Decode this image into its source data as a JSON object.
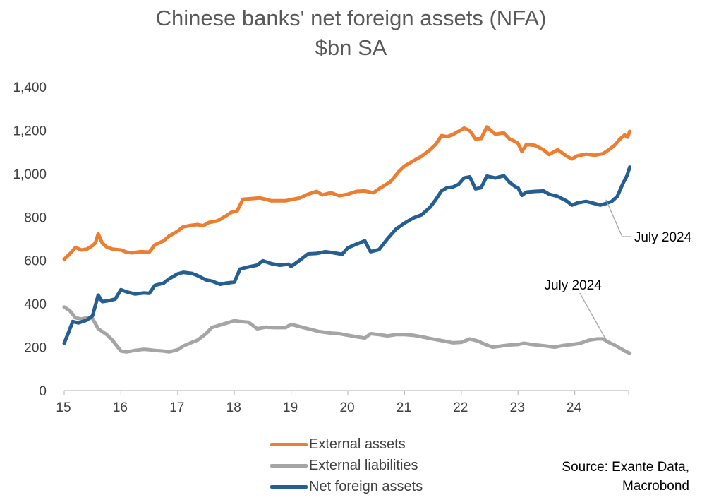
{
  "title": "Chinese banks' net foreign assets (NFA)",
  "subtitle": "$bn SA",
  "source_line1": "Source: Exante Data,",
  "source_line2": "Macrobond",
  "chart_data": {
    "type": "line",
    "title": "Chinese banks' net foreign assets (NFA)",
    "subtitle": "$bn SA",
    "x_ticks": [
      "15",
      "16",
      "17",
      "18",
      "19",
      "20",
      "21",
      "22",
      "23",
      "24"
    ],
    "y_ticks": [
      "0",
      "200",
      "400",
      "600",
      "800",
      "1,000",
      "1,200",
      "1,400"
    ],
    "xlim": [
      2015,
      2024.95
    ],
    "ylim": [
      0,
      1400
    ],
    "grid": false,
    "legend_position": "bottom",
    "series": [
      {
        "name": "External assets",
        "color": "#ED7D31",
        "points": [
          [
            2015.0,
            605
          ],
          [
            2015.1,
            630
          ],
          [
            2015.2,
            660
          ],
          [
            2015.3,
            648
          ],
          [
            2015.4,
            652
          ],
          [
            2015.5,
            668
          ],
          [
            2015.55,
            680
          ],
          [
            2015.6,
            722
          ],
          [
            2015.67,
            680
          ],
          [
            2015.75,
            662
          ],
          [
            2015.85,
            652
          ],
          [
            2016.0,
            648
          ],
          [
            2016.1,
            638
          ],
          [
            2016.2,
            635
          ],
          [
            2016.35,
            640
          ],
          [
            2016.5,
            638
          ],
          [
            2016.6,
            672
          ],
          [
            2016.75,
            690
          ],
          [
            2016.85,
            712
          ],
          [
            2017.0,
            735
          ],
          [
            2017.1,
            755
          ],
          [
            2017.25,
            762
          ],
          [
            2017.35,
            765
          ],
          [
            2017.45,
            760
          ],
          [
            2017.55,
            775
          ],
          [
            2017.7,
            782
          ],
          [
            2017.85,
            805
          ],
          [
            2017.95,
            822
          ],
          [
            2018.05,
            828
          ],
          [
            2018.15,
            882
          ],
          [
            2018.3,
            885
          ],
          [
            2018.45,
            888
          ],
          [
            2018.55,
            882
          ],
          [
            2018.65,
            875
          ],
          [
            2018.75,
            875
          ],
          [
            2018.9,
            875
          ],
          [
            2019.0,
            880
          ],
          [
            2019.15,
            888
          ],
          [
            2019.3,
            905
          ],
          [
            2019.45,
            918
          ],
          [
            2019.55,
            902
          ],
          [
            2019.7,
            912
          ],
          [
            2019.85,
            898
          ],
          [
            2020.0,
            905
          ],
          [
            2020.15,
            918
          ],
          [
            2020.3,
            920
          ],
          [
            2020.45,
            912
          ],
          [
            2020.55,
            930
          ],
          [
            2020.75,
            962
          ],
          [
            2020.9,
            1010
          ],
          [
            2021.0,
            1035
          ],
          [
            2021.15,
            1058
          ],
          [
            2021.3,
            1080
          ],
          [
            2021.45,
            1110
          ],
          [
            2021.55,
            1135
          ],
          [
            2021.65,
            1175
          ],
          [
            2021.75,
            1170
          ],
          [
            2021.85,
            1180
          ],
          [
            2021.95,
            1195
          ],
          [
            2022.05,
            1210
          ],
          [
            2022.15,
            1198
          ],
          [
            2022.25,
            1160
          ],
          [
            2022.35,
            1162
          ],
          [
            2022.45,
            1215
          ],
          [
            2022.6,
            1182
          ],
          [
            2022.75,
            1188
          ],
          [
            2022.85,
            1160
          ],
          [
            2022.95,
            1148
          ],
          [
            2023.0,
            1140
          ],
          [
            2023.07,
            1102
          ],
          [
            2023.15,
            1135
          ],
          [
            2023.3,
            1130
          ],
          [
            2023.45,
            1110
          ],
          [
            2023.55,
            1088
          ],
          [
            2023.7,
            1110
          ],
          [
            2023.85,
            1082
          ],
          [
            2023.95,
            1068
          ],
          [
            2024.05,
            1082
          ],
          [
            2024.2,
            1090
          ],
          [
            2024.35,
            1085
          ],
          [
            2024.5,
            1092
          ],
          [
            2024.6,
            1110
          ],
          [
            2024.7,
            1130
          ],
          [
            2024.8,
            1160
          ],
          [
            2024.88,
            1178
          ],
          [
            2024.93,
            1168
          ],
          [
            2024.97,
            1195
          ]
        ]
      },
      {
        "name": "External liabilities",
        "color": "#A5A5A5",
        "points": [
          [
            2015.0,
            385
          ],
          [
            2015.1,
            368
          ],
          [
            2015.2,
            335
          ],
          [
            2015.3,
            330
          ],
          [
            2015.4,
            335
          ],
          [
            2015.5,
            332
          ],
          [
            2015.6,
            285
          ],
          [
            2015.75,
            258
          ],
          [
            2015.85,
            232
          ],
          [
            2016.0,
            182
          ],
          [
            2016.1,
            178
          ],
          [
            2016.25,
            185
          ],
          [
            2016.4,
            190
          ],
          [
            2016.5,
            188
          ],
          [
            2016.6,
            185
          ],
          [
            2016.75,
            182
          ],
          [
            2016.85,
            178
          ],
          [
            2017.0,
            188
          ],
          [
            2017.1,
            205
          ],
          [
            2017.25,
            222
          ],
          [
            2017.35,
            232
          ],
          [
            2017.5,
            262
          ],
          [
            2017.6,
            290
          ],
          [
            2017.75,
            302
          ],
          [
            2017.85,
            310
          ],
          [
            2018.0,
            322
          ],
          [
            2018.1,
            318
          ],
          [
            2018.25,
            315
          ],
          [
            2018.4,
            285
          ],
          [
            2018.55,
            292
          ],
          [
            2018.7,
            290
          ],
          [
            2018.9,
            290
          ],
          [
            2019.0,
            305
          ],
          [
            2019.15,
            295
          ],
          [
            2019.3,
            285
          ],
          [
            2019.5,
            272
          ],
          [
            2019.7,
            265
          ],
          [
            2019.85,
            262
          ],
          [
            2020.0,
            255
          ],
          [
            2020.15,
            248
          ],
          [
            2020.3,
            242
          ],
          [
            2020.4,
            262
          ],
          [
            2020.55,
            258
          ],
          [
            2020.7,
            252
          ],
          [
            2020.85,
            258
          ],
          [
            2021.0,
            258
          ],
          [
            2021.15,
            255
          ],
          [
            2021.3,
            248
          ],
          [
            2021.45,
            240
          ],
          [
            2021.55,
            235
          ],
          [
            2021.7,
            228
          ],
          [
            2021.85,
            220
          ],
          [
            2022.0,
            222
          ],
          [
            2022.15,
            238
          ],
          [
            2022.3,
            228
          ],
          [
            2022.4,
            215
          ],
          [
            2022.55,
            200
          ],
          [
            2022.7,
            205
          ],
          [
            2022.85,
            210
          ],
          [
            2023.0,
            212
          ],
          [
            2023.1,
            218
          ],
          [
            2023.25,
            212
          ],
          [
            2023.4,
            208
          ],
          [
            2023.5,
            205
          ],
          [
            2023.65,
            200
          ],
          [
            2023.8,
            208
          ],
          [
            2023.95,
            212
          ],
          [
            2024.1,
            218
          ],
          [
            2024.25,
            232
          ],
          [
            2024.4,
            238
          ],
          [
            2024.5,
            238
          ],
          [
            2024.6,
            222
          ],
          [
            2024.7,
            210
          ],
          [
            2024.82,
            192
          ],
          [
            2024.9,
            180
          ],
          [
            2024.97,
            172
          ]
        ]
      },
      {
        "name": "Net foreign assets",
        "color": "#255E91",
        "points": [
          [
            2015.0,
            218
          ],
          [
            2015.08,
            270
          ],
          [
            2015.15,
            318
          ],
          [
            2015.25,
            312
          ],
          [
            2015.4,
            325
          ],
          [
            2015.5,
            345
          ],
          [
            2015.6,
            440
          ],
          [
            2015.67,
            410
          ],
          [
            2015.8,
            415
          ],
          [
            2015.9,
            422
          ],
          [
            2016.0,
            465
          ],
          [
            2016.1,
            455
          ],
          [
            2016.25,
            445
          ],
          [
            2016.4,
            450
          ],
          [
            2016.5,
            448
          ],
          [
            2016.6,
            485
          ],
          [
            2016.75,
            495
          ],
          [
            2016.85,
            515
          ],
          [
            2017.0,
            538
          ],
          [
            2017.1,
            545
          ],
          [
            2017.25,
            540
          ],
          [
            2017.35,
            530
          ],
          [
            2017.5,
            510
          ],
          [
            2017.6,
            505
          ],
          [
            2017.75,
            490
          ],
          [
            2017.85,
            495
          ],
          [
            2018.0,
            500
          ],
          [
            2018.1,
            560
          ],
          [
            2018.25,
            570
          ],
          [
            2018.4,
            578
          ],
          [
            2018.5,
            598
          ],
          [
            2018.65,
            585
          ],
          [
            2018.8,
            578
          ],
          [
            2018.95,
            582
          ],
          [
            2019.0,
            572
          ],
          [
            2019.15,
            600
          ],
          [
            2019.3,
            630
          ],
          [
            2019.45,
            632
          ],
          [
            2019.6,
            640
          ],
          [
            2019.75,
            635
          ],
          [
            2019.9,
            628
          ],
          [
            2020.0,
            658
          ],
          [
            2020.15,
            675
          ],
          [
            2020.3,
            690
          ],
          [
            2020.4,
            640
          ],
          [
            2020.55,
            650
          ],
          [
            2020.7,
            700
          ],
          [
            2020.85,
            745
          ],
          [
            2021.0,
            772
          ],
          [
            2021.15,
            795
          ],
          [
            2021.3,
            810
          ],
          [
            2021.45,
            845
          ],
          [
            2021.55,
            880
          ],
          [
            2021.65,
            920
          ],
          [
            2021.75,
            935
          ],
          [
            2021.85,
            938
          ],
          [
            2021.95,
            950
          ],
          [
            2022.05,
            980
          ],
          [
            2022.15,
            985
          ],
          [
            2022.25,
            930
          ],
          [
            2022.35,
            935
          ],
          [
            2022.45,
            988
          ],
          [
            2022.6,
            980
          ],
          [
            2022.75,
            990
          ],
          [
            2022.85,
            960
          ],
          [
            2022.95,
            940
          ],
          [
            2023.0,
            935
          ],
          [
            2023.07,
            900
          ],
          [
            2023.15,
            915
          ],
          [
            2023.3,
            918
          ],
          [
            2023.45,
            920
          ],
          [
            2023.55,
            905
          ],
          [
            2023.7,
            895
          ],
          [
            2023.85,
            875
          ],
          [
            2023.95,
            855
          ],
          [
            2024.05,
            865
          ],
          [
            2024.2,
            872
          ],
          [
            2024.35,
            862
          ],
          [
            2024.45,
            855
          ],
          [
            2024.55,
            862
          ],
          [
            2024.65,
            872
          ],
          [
            2024.75,
            895
          ],
          [
            2024.85,
            955
          ],
          [
            2024.92,
            990
          ],
          [
            2024.97,
            1030
          ]
        ]
      }
    ],
    "annotations": [
      {
        "text": "July 2024",
        "series": "Net foreign assets",
        "x": 2024.55,
        "y": 880
      },
      {
        "text": "July 2024",
        "series": "External liabilities",
        "x": 2024.55,
        "y": 235
      }
    ]
  }
}
